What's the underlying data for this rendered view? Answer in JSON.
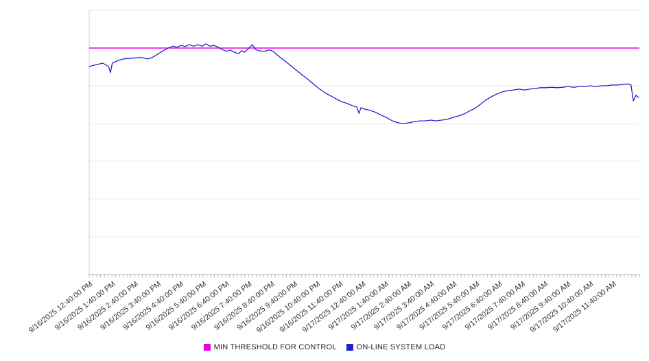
{
  "chart_data": {
    "type": "line",
    "title": "",
    "xlabel": "",
    "ylabel": "",
    "grid": "horizontal",
    "legend_position": "bottom-center",
    "x_unit": "minutes_since_plot_start",
    "xlim": [
      0,
      1450
    ],
    "ylim": [
      0,
      7
    ],
    "y_gridline_step": 1,
    "y_tick_labels_visible": false,
    "first_tick_offset_minutes": 10,
    "x_tick_interval_minutes": 60,
    "minor_tick_interval_minutes": 10,
    "x_tick_labels": [
      "9/16/2025 12:40:00 PM",
      "9/16/2025 1:40:00 PM",
      "9/16/2025 2:40:00 PM",
      "9/16/2025 3:40:00 PM",
      "9/16/2025 4:40:00 PM",
      "9/16/2025 5:40:00 PM",
      "9/16/2025 6:40:00 PM",
      "9/16/2025 7:40:00 PM",
      "9/16/2025 8:40:00 PM",
      "9/16/2025 9:40:00 PM",
      "9/16/2025 10:40:00 PM",
      "9/16/2025 11:40:00 PM",
      "9/17/2025 12:40:00 AM",
      "9/17/2025 1:40:00 AM",
      "9/17/2025 2:40:00 AM",
      "9/17/2025 3:40:00 AM",
      "9/17/2025 4:40:00 AM",
      "9/17/2025 5:40:00 AM",
      "9/17/2025 6:40:00 AM",
      "9/17/2025 7:40:00 AM",
      "9/17/2025 8:40:00 AM",
      "9/17/2025 9:40:00 AM",
      "9/17/2025 10:40:00 AM",
      "9/17/2025 11:40:00 AM"
    ],
    "series": [
      {
        "name": "MIN THRESHOLD FOR CONTROL",
        "type": "horizontal-line",
        "color": "#e800e8",
        "value": 6.0
      },
      {
        "name": "ON-LINE SYSTEM LOAD",
        "type": "line",
        "color": "#2222cc",
        "points": [
          [
            0,
            5.51
          ],
          [
            18,
            5.56
          ],
          [
            36,
            5.6
          ],
          [
            51,
            5.51
          ],
          [
            56,
            5.35
          ],
          [
            61,
            5.6
          ],
          [
            76,
            5.67
          ],
          [
            90,
            5.71
          ],
          [
            112,
            5.73
          ],
          [
            136,
            5.75
          ],
          [
            154,
            5.71
          ],
          [
            166,
            5.75
          ],
          [
            181,
            5.84
          ],
          [
            195,
            5.93
          ],
          [
            208,
            6.0
          ],
          [
            221,
            6.05
          ],
          [
            231,
            6.02
          ],
          [
            242,
            6.07
          ],
          [
            253,
            6.04
          ],
          [
            264,
            6.09
          ],
          [
            275,
            6.05
          ],
          [
            286,
            6.09
          ],
          [
            298,
            6.05
          ],
          [
            307,
            6.11
          ],
          [
            318,
            6.05
          ],
          [
            329,
            6.07
          ],
          [
            340,
            6.02
          ],
          [
            351,
            5.96
          ],
          [
            362,
            5.91
          ],
          [
            372,
            5.95
          ],
          [
            383,
            5.89
          ],
          [
            394,
            5.85
          ],
          [
            401,
            5.93
          ],
          [
            409,
            5.89
          ],
          [
            416,
            5.95
          ],
          [
            430,
            6.09
          ],
          [
            438,
            5.96
          ],
          [
            448,
            5.93
          ],
          [
            461,
            5.91
          ],
          [
            474,
            5.95
          ],
          [
            485,
            5.91
          ],
          [
            495,
            5.82
          ],
          [
            506,
            5.73
          ],
          [
            517,
            5.65
          ],
          [
            528,
            5.56
          ],
          [
            539,
            5.47
          ],
          [
            550,
            5.38
          ],
          [
            561,
            5.29
          ],
          [
            573,
            5.2
          ],
          [
            586,
            5.09
          ],
          [
            599,
            4.98
          ],
          [
            611,
            4.89
          ],
          [
            624,
            4.8
          ],
          [
            637,
            4.73
          ],
          [
            651,
            4.65
          ],
          [
            665,
            4.58
          ],
          [
            680,
            4.53
          ],
          [
            694,
            4.47
          ],
          [
            705,
            4.44
          ],
          [
            711,
            4.27
          ],
          [
            716,
            4.42
          ],
          [
            727,
            4.38
          ],
          [
            741,
            4.35
          ],
          [
            756,
            4.29
          ],
          [
            770,
            4.22
          ],
          [
            785,
            4.15
          ],
          [
            799,
            4.07
          ],
          [
            814,
            4.02
          ],
          [
            828,
            4.0
          ],
          [
            843,
            4.02
          ],
          [
            857,
            4.05
          ],
          [
            872,
            4.07
          ],
          [
            886,
            4.07
          ],
          [
            900,
            4.09
          ],
          [
            915,
            4.07
          ],
          [
            929,
            4.09
          ],
          [
            944,
            4.11
          ],
          [
            958,
            4.16
          ],
          [
            973,
            4.2
          ],
          [
            987,
            4.25
          ],
          [
            1002,
            4.33
          ],
          [
            1016,
            4.4
          ],
          [
            1031,
            4.51
          ],
          [
            1045,
            4.62
          ],
          [
            1060,
            4.71
          ],
          [
            1074,
            4.78
          ],
          [
            1089,
            4.84
          ],
          [
            1103,
            4.87
          ],
          [
            1118,
            4.89
          ],
          [
            1132,
            4.91
          ],
          [
            1147,
            4.89
          ],
          [
            1161,
            4.91
          ],
          [
            1175,
            4.93
          ],
          [
            1190,
            4.95
          ],
          [
            1204,
            4.95
          ],
          [
            1219,
            4.96
          ],
          [
            1233,
            4.95
          ],
          [
            1248,
            4.96
          ],
          [
            1262,
            4.98
          ],
          [
            1277,
            4.96
          ],
          [
            1291,
            4.98
          ],
          [
            1306,
            4.98
          ],
          [
            1320,
            5.0
          ],
          [
            1334,
            4.98
          ],
          [
            1349,
            5.0
          ],
          [
            1363,
            5.0
          ],
          [
            1378,
            5.02
          ],
          [
            1392,
            5.02
          ],
          [
            1407,
            5.04
          ],
          [
            1421,
            5.05
          ],
          [
            1428,
            5.02
          ],
          [
            1434,
            4.6
          ],
          [
            1441,
            4.75
          ],
          [
            1448,
            4.69
          ]
        ]
      }
    ]
  },
  "legend": {
    "items": [
      {
        "label": "MIN THRESHOLD FOR CONTROL",
        "color": "#e800e8"
      },
      {
        "label": "ON-LINE SYSTEM LOAD",
        "color": "#2222cc"
      }
    ]
  }
}
